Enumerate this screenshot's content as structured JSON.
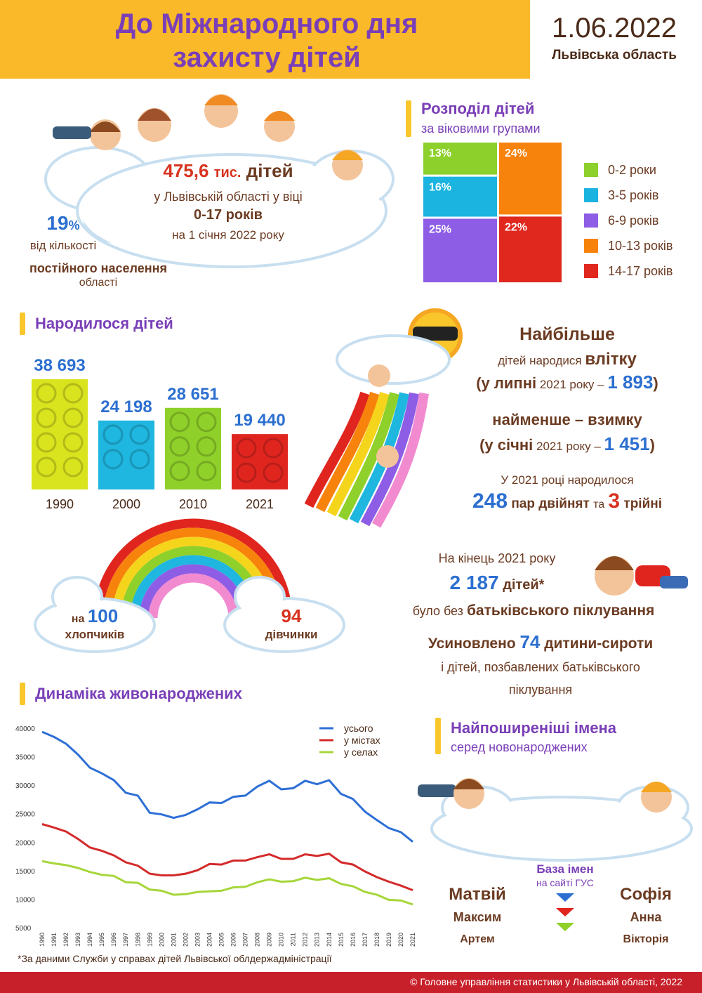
{
  "header": {
    "title": "До Міжнародного дня захисту дітей",
    "date": "1.06.2022",
    "region": "Львівська область"
  },
  "children_total": {
    "number": "475,6",
    "unit": "тис.",
    "noun": "дітей",
    "line2": "у Львівській області у віці",
    "ages": "0-17 років",
    "date": "на 1 січня 2022 року"
  },
  "population_share": {
    "number": "19",
    "unit": "%",
    "line2": "від кількості",
    "line3": "постійного населення",
    "line4": "області"
  },
  "chart_data": [
    {
      "type": "treemap",
      "title": "Розподіл дітей",
      "subtitle": "за віковими групами",
      "categories": [
        "0-2 роки",
        "3-5 років",
        "6-9 років",
        "10-13 років",
        "14-17 років"
      ],
      "values": [
        13,
        16,
        25,
        24,
        22
      ],
      "value_labels": [
        "13%",
        "16%",
        "25%",
        "24%",
        "22%"
      ],
      "colors": [
        "#8dd02c",
        "#1bb4e0",
        "#8e5de6",
        "#f7830c",
        "#e0281f"
      ]
    },
    {
      "type": "bar",
      "title": "Народилося дітей",
      "categories": [
        "1990",
        "2000",
        "2010",
        "2021"
      ],
      "values": [
        38693,
        24198,
        28651,
        19440
      ],
      "value_labels": [
        "38 693",
        "24 198",
        "28 651",
        "19 440"
      ],
      "colors": [
        "#d9e31e",
        "#1fb6df",
        "#8fd02a",
        "#e0251f"
      ]
    },
    {
      "type": "line",
      "title": "Динаміка живонароджених",
      "x": [
        1990,
        1991,
        1992,
        1993,
        1994,
        1995,
        1996,
        1997,
        1998,
        1999,
        2000,
        2001,
        2002,
        2003,
        2004,
        2005,
        2006,
        2007,
        2008,
        2009,
        2010,
        2011,
        2012,
        2013,
        2014,
        2015,
        2016,
        2017,
        2018,
        2019,
        2020,
        2021
      ],
      "xlim": [
        1990,
        2021
      ],
      "xticks": [
        1990,
        1991,
        1992,
        1993,
        1994,
        1995,
        1996,
        1997,
        1998,
        1999,
        2000,
        2001,
        2002,
        2003,
        2004,
        2005,
        2006,
        2007,
        2008,
        2009,
        2010,
        2011,
        2012,
        2013,
        2014,
        2015,
        2016,
        2017,
        2018,
        2019,
        2020,
        2021
      ],
      "ylim": [
        5000,
        40000
      ],
      "yticks": [
        5000,
        10000,
        15000,
        20000,
        25000,
        30000,
        35000,
        40000
      ],
      "series": [
        {
          "name": "усього",
          "color": "#2e6fd6",
          "values": [
            39500,
            38600,
            37400,
            35500,
            33200,
            32200,
            31000,
            28800,
            28300,
            25300,
            25000,
            24400,
            24900,
            25900,
            27100,
            27000,
            28100,
            28300,
            29900,
            30900,
            29400,
            29600,
            30900,
            30300,
            31000,
            28600,
            27700,
            25500,
            24000,
            22600,
            21900,
            20200
          ]
        },
        {
          "name": "у містах",
          "color": "#d42a2a",
          "values": [
            23300,
            22700,
            22000,
            20700,
            19200,
            18600,
            17800,
            16600,
            16000,
            14600,
            14300,
            14300,
            14600,
            15200,
            16300,
            16200,
            16900,
            16900,
            17500,
            18000,
            17200,
            17200,
            18000,
            17700,
            18100,
            16600,
            16200,
            15000,
            14000,
            13200,
            12500,
            11700
          ]
        },
        {
          "name": "у селах",
          "color": "#a6d63a",
          "values": [
            16800,
            16400,
            16100,
            15600,
            14900,
            14400,
            14200,
            13100,
            13000,
            11800,
            11600,
            10900,
            11000,
            11400,
            11500,
            11600,
            12200,
            12300,
            13100,
            13600,
            13200,
            13300,
            13900,
            13500,
            13800,
            12800,
            12400,
            11400,
            10900,
            10000,
            9900,
            9200
          ]
        }
      ]
    }
  ],
  "births_facts": {
    "most": "Найбільше",
    "most_line": "дітей народися",
    "most_season": "влітку",
    "most_open": "(у липні",
    "most_year": "2021 року –",
    "most_number": "1 893",
    "close": ")",
    "least": "найменше – взимку",
    "least_open": "(у січні",
    "least_year": "2021 року –",
    "least_number": "1 451",
    "twins_intro": "У 2021 році народилося",
    "twins_number": "248",
    "twins_text": "пар двійнят",
    "and": "та",
    "triplets_number": "3",
    "triplets_text": "трійні"
  },
  "sex_ratio": {
    "boys_prefix": "на",
    "boys_number": "100",
    "boys_text": "хлопчиків",
    "girls_number": "94",
    "girls_text": "дівчинки"
  },
  "orphans": {
    "intro": "На кінець 2021 року",
    "number": "2 187",
    "noun": "дітей*",
    "without": "було без",
    "care": "батьківського піклування",
    "adopted": "Усиновлено",
    "adopted_number": "74",
    "adopted_text": "дитини-сироти",
    "rest": "і дітей, позбавлених батьківського піклування"
  },
  "names": {
    "title": "Найпоширеніші імена",
    "subtitle": "серед новонароджених",
    "database": "База імен",
    "database_site": "на сайті ГУС",
    "boys": [
      "Матвій",
      "Максим",
      "Артем"
    ],
    "girls": [
      "Софія",
      "Анна",
      "Вікторія"
    ]
  },
  "footnote": "*За даними Служби у справах дітей Львівської облдержадміністрації",
  "footer": "© Головне управління статистики у Львівській області, 2022"
}
